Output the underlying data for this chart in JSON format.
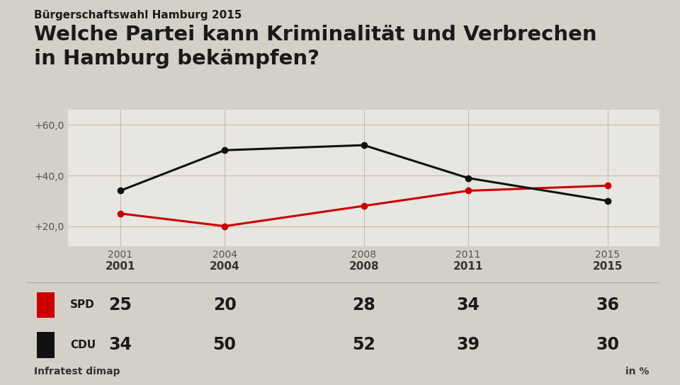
{
  "supertitle": "Bürgerschaftswahl Hamburg 2015",
  "title": "Welche Partei kann Kriminalität und Verbrechen\nin Hamburg bekämpfen?",
  "years": [
    2001,
    2004,
    2008,
    2011,
    2015
  ],
  "spd_values": [
    25,
    20,
    28,
    34,
    36
  ],
  "cdu_values": [
    34,
    50,
    52,
    39,
    30
  ],
  "spd_color": "#cc0000",
  "cdu_color": "#111111",
  "yticks": [
    20,
    40,
    60
  ],
  "ytick_labels": [
    "+20,0",
    "+40,0",
    "+60,0"
  ],
  "ylim": [
    12,
    66
  ],
  "xlim": [
    1999.5,
    2016.5
  ],
  "source": "Infratest dimap",
  "unit": "in %",
  "bg_color": "#d4d0c8",
  "plot_bg_color": "#e8e6e0",
  "table_bg_color": "#f0eeea",
  "grid_color": "#c0bdb5"
}
